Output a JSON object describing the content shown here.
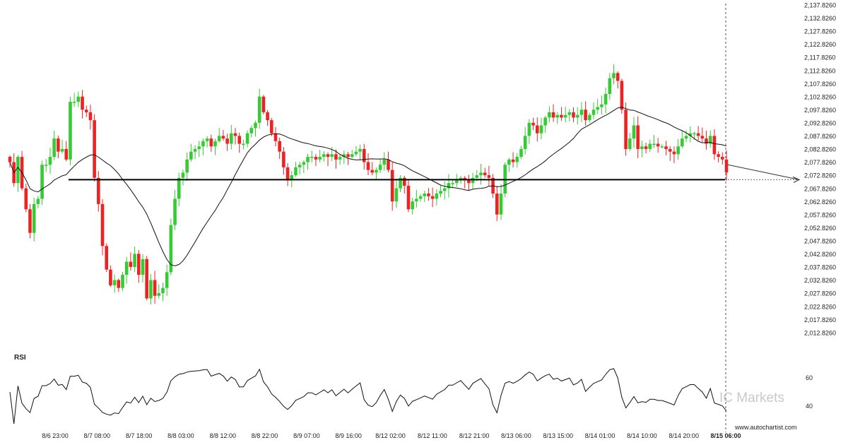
{
  "watermark": "IC Markets",
  "site": "www.autochartist.com",
  "chart_data": {
    "type": "candlestick",
    "y_ticks": [
      "2,137.8260",
      "2,132.8260",
      "2,127.8260",
      "2,122.8260",
      "2,117.8260",
      "2,112.8260",
      "2,107.8260",
      "2,102.8260",
      "2,097.8260",
      "2,092.8260",
      "2,087.8260",
      "2,082.8260",
      "2,077.8260",
      "2,072.8260",
      "2,067.8260",
      "2,062.8260",
      "2,057.8260",
      "2,052.8260",
      "2,047.8260",
      "2,042.8260",
      "2,037.8260",
      "2,032.8260",
      "2,027.8260",
      "2,022.8260",
      "2,017.8260",
      "2,012.8260"
    ],
    "x_ticks": [
      "8/6 23:00",
      "8/7 08:00",
      "8/7 18:00",
      "8/8 03:00",
      "8/8 12:00",
      "8/8 22:00",
      "8/9 07:00",
      "8/9 16:00",
      "8/12 02:00",
      "8/12 11:00",
      "8/12 21:00",
      "8/13 06:00",
      "8/13 15:00",
      "8/14 01:00",
      "8/14 10:00",
      "8/14 20:00",
      "8/15 06:00"
    ],
    "highlight_x_tick": "8/15 06:00",
    "ylim": [
      2010.5,
      2138.5
    ],
    "colors": {
      "up": "#33cc33",
      "down": "#ee2222",
      "ma": "#111111",
      "level": "#000000"
    },
    "support_level": 2071.3,
    "forecast": {
      "from": 2077.0,
      "to": 2071.3
    },
    "close": [
      2078,
      2070,
      2080,
      2068,
      2060,
      2051,
      2062,
      2064,
      2077,
      2077,
      2080,
      2087,
      2082,
      2083,
      2079,
      2101,
      2101,
      2103,
      2098,
      2097,
      2094,
      2072,
      2062,
      2046,
      2037,
      2031,
      2033,
      2030,
      2035,
      2040,
      2038,
      2043,
      2035,
      2041,
      2026,
      2033,
      2027,
      2028,
      2030,
      2036,
      2054,
      2064,
      2072,
      2074,
      2079,
      2082,
      2083,
      2084,
      2086,
      2087,
      2084,
      2086,
      2088,
      2087,
      2085,
      2089,
      2088,
      2085,
      2085,
      2089,
      2091,
      2093,
      2103,
      2097,
      2094,
      2089,
      2086,
      2082,
      2076,
      2071,
      2073,
      2076,
      2077,
      2078,
      2080,
      2080,
      2079,
      2080,
      2081,
      2080,
      2081,
      2079,
      2080,
      2081,
      2080,
      2081,
      2082,
      2083,
      2078,
      2075,
      2074,
      2075,
      2077,
      2079,
      2075,
      2063,
      2068,
      2072,
      2069,
      2060,
      2063,
      2064,
      2065,
      2066,
      2065,
      2064,
      2066,
      2067,
      2068,
      2070,
      2070,
      2071,
      2072,
      2071,
      2070,
      2072,
      2073,
      2074,
      2073,
      2072,
      2066,
      2058,
      2066,
      2077,
      2079,
      2078,
      2080,
      2083,
      2088,
      2093,
      2092,
      2089,
      2092,
      2095,
      2097,
      2095,
      2096,
      2095,
      2096,
      2097,
      2095,
      2096,
      2098,
      2094,
      2096,
      2098,
      2099,
      2100,
      2104,
      2110,
      2112,
      2109,
      2098,
      2083,
      2087,
      2092,
      2083,
      2084,
      2083,
      2085,
      2085,
      2084,
      2084,
      2083,
      2082,
      2081,
      2084,
      2087,
      2088,
      2089,
      2089,
      2088,
      2087,
      2085,
      2088,
      2081,
      2080,
      2079,
      2074
    ],
    "rsi": {
      "ticks": [
        "60",
        "40"
      ],
      "ylim": [
        30,
        75
      ]
    }
  }
}
